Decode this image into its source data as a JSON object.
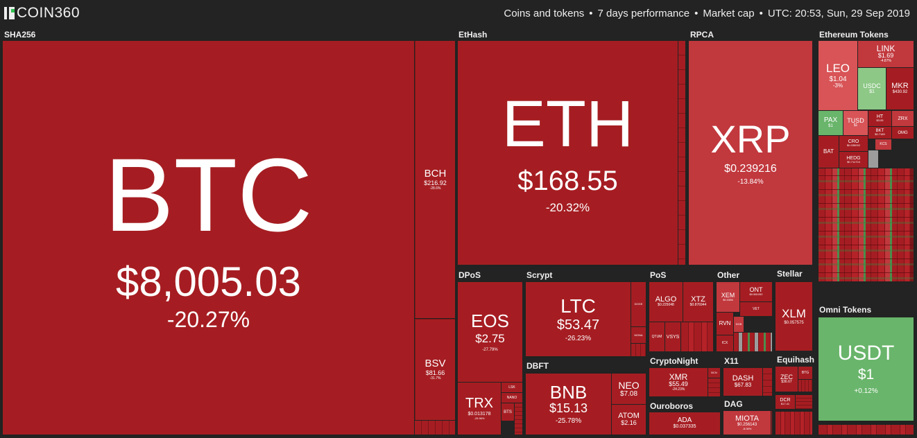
{
  "brand": {
    "name": "COIN360"
  },
  "header": {
    "filters": [
      "Coins and tokens",
      "7 days performance",
      "Market cap",
      "UTC: 20:53, Sun, 29 Sep 2019"
    ]
  },
  "colors": {
    "background": "#222322",
    "negative": "#a51d22",
    "positive": "#69b56b"
  },
  "groups": {
    "sha256": "SHA256",
    "ethash": "EtHash",
    "rpca": "RPCA",
    "ethereum_tokens": "Ethereum Tokens",
    "dpos": "DPoS",
    "scrypt": "Scrypt",
    "pos": "PoS",
    "other": "Other",
    "stellar": "Stellar",
    "omni_tokens": "Omni Tokens",
    "dbft": "DBFT",
    "cryptonight": "CryptoNight",
    "x11": "X11",
    "equihash": "Equihash",
    "ouroboros": "Ouroboros",
    "dag": "DAG"
  },
  "coins": {
    "btc": {
      "symbol": "BTC",
      "price": "$8,005.03",
      "change": "-20.27%"
    },
    "bch": {
      "symbol": "BCH",
      "price": "$216.92",
      "change": "-28.6%"
    },
    "bsv": {
      "symbol": "BSV",
      "price": "$81.66",
      "change": "-31.7%"
    },
    "eth": {
      "symbol": "ETH",
      "price": "$168.55",
      "change": "-20.32%"
    },
    "xrp": {
      "symbol": "XRP",
      "price": "$0.239216",
      "change": "-13.84%"
    },
    "leo": {
      "symbol": "LEO",
      "price": "$1.04",
      "change": "-3%"
    },
    "link": {
      "symbol": "LINK",
      "price": "$1.69",
      "change": "-4.87%"
    },
    "usdc": {
      "symbol": "USDC",
      "price": "$1",
      "change": ""
    },
    "mkr": {
      "symbol": "MKR",
      "price": "$430.92",
      "change": ""
    },
    "pax": {
      "symbol": "PAX",
      "price": "$1",
      "change": ""
    },
    "tusd": {
      "symbol": "TUSD",
      "price": "$1",
      "change": ""
    },
    "ht": {
      "symbol": "HT",
      "price": "$3.05",
      "change": ""
    },
    "zrx": {
      "symbol": "ZRX",
      "price": "",
      "change": ""
    },
    "cro": {
      "symbol": "CRO",
      "price": "$0.035092",
      "change": ""
    },
    "bat": {
      "symbol": "BAT",
      "price": "",
      "change": ""
    },
    "hedg": {
      "symbol": "HEDG",
      "price": "$0.711724",
      "change": ""
    },
    "omg": {
      "symbol": "OMG",
      "price": "",
      "change": ""
    },
    "bkt": {
      "symbol": "BKT",
      "price": "$0.7189",
      "change": ""
    },
    "kcs": {
      "symbol": "KCS",
      "price": "",
      "change": ""
    },
    "eos": {
      "symbol": "EOS",
      "price": "$2.75",
      "change": "-27.79%"
    },
    "trx": {
      "symbol": "TRX",
      "price": "$0.013178",
      "change": "-25.96%"
    },
    "lsk": {
      "symbol": "LSK",
      "price": "",
      "change": ""
    },
    "nano": {
      "symbol": "NANO",
      "price": "",
      "change": ""
    },
    "bts": {
      "symbol": "BTS",
      "price": "",
      "change": ""
    },
    "ltc": {
      "symbol": "LTC",
      "price": "$53.47",
      "change": "-26.23%"
    },
    "doge": {
      "symbol": "DOGE",
      "price": "",
      "change": ""
    },
    "mona": {
      "symbol": "MONA",
      "price": "",
      "change": ""
    },
    "algo": {
      "symbol": "ALGO",
      "price": "$0.225048",
      "change": ""
    },
    "xtz": {
      "symbol": "XTZ",
      "price": "$0.876944",
      "change": ""
    },
    "vsys": {
      "symbol": "VSYS",
      "price": "",
      "change": ""
    },
    "qtum": {
      "symbol": "QTUM",
      "price": "",
      "change": ""
    },
    "xem": {
      "symbol": "XEM",
      "price": "$0.0386",
      "change": ""
    },
    "ont": {
      "symbol": "ONT",
      "price": "$0.581092",
      "change": ""
    },
    "vet": {
      "symbol": "VET",
      "price": "",
      "change": ""
    },
    "rvn": {
      "symbol": "RVN",
      "price": "",
      "change": ""
    },
    "dgb": {
      "symbol": "DGB",
      "price": "",
      "change": ""
    },
    "icx": {
      "symbol": "ICX",
      "price": "",
      "change": ""
    },
    "xlm": {
      "symbol": "XLM",
      "price": "$0.057575",
      "change": ""
    },
    "usdt": {
      "symbol": "USDT",
      "price": "$1",
      "change": "+0.12%"
    },
    "bnb": {
      "symbol": "BNB",
      "price": "$15.13",
      "change": "-25.78%"
    },
    "neo": {
      "symbol": "NEO",
      "price": "$7.08",
      "change": ""
    },
    "atom": {
      "symbol": "ATOM",
      "price": "$2.16",
      "change": ""
    },
    "xmr": {
      "symbol": "XMR",
      "price": "$55.49",
      "change": "-24.23%"
    },
    "bcn": {
      "symbol": "BCN",
      "price": "",
      "change": ""
    },
    "dash": {
      "symbol": "DASH",
      "price": "$67.83",
      "change": ""
    },
    "zec": {
      "symbol": "ZEC",
      "price": "$36.67",
      "change": ""
    },
    "btg": {
      "symbol": "BTG",
      "price": "",
      "change": ""
    },
    "dcr": {
      "symbol": "DCR",
      "price": "$17.41",
      "change": ""
    },
    "ada": {
      "symbol": "ADA",
      "price": "$0.037335",
      "change": ""
    },
    "miota": {
      "symbol": "MIOTA",
      "price": "$0.256143",
      "change": "-8.06%"
    }
  }
}
